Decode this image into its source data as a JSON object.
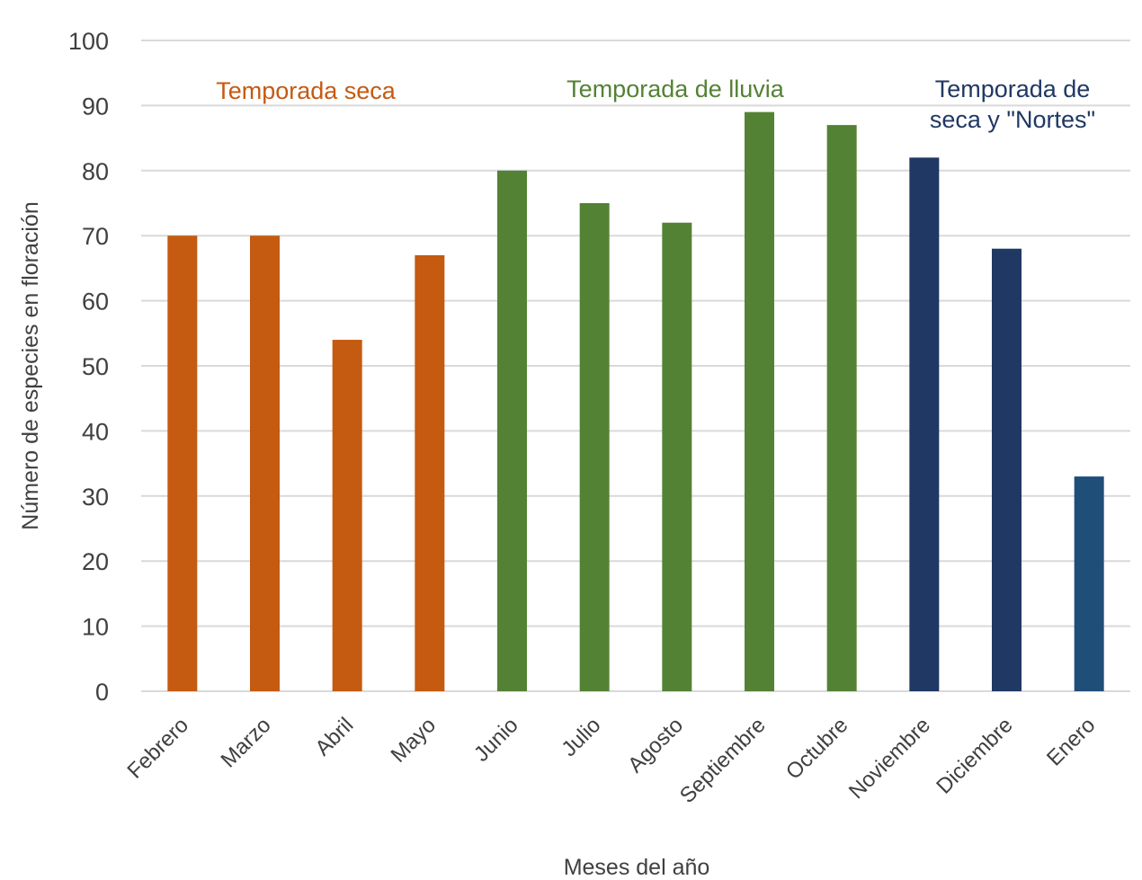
{
  "chart_data": {
    "type": "bar",
    "title": "",
    "xlabel": "Meses del año",
    "ylabel": "Número de especies en floración",
    "ylim": [
      0,
      100
    ],
    "yticks": [
      0,
      10,
      20,
      30,
      40,
      50,
      60,
      70,
      80,
      90,
      100
    ],
    "grid": true,
    "categories": [
      "Febrero",
      "Marzo",
      "Abril",
      "Mayo",
      "Junio",
      "Julio",
      "Agosto",
      "Septiembre",
      "Octubre",
      "Noviembre",
      "Diciembre",
      "Enero"
    ],
    "values": [
      70,
      70,
      54,
      67,
      80,
      75,
      72,
      89,
      87,
      82,
      68,
      33
    ],
    "bar_colors": [
      "#c55a11",
      "#c55a11",
      "#c55a11",
      "#c55a11",
      "#548235",
      "#548235",
      "#548235",
      "#548235",
      "#548235",
      "#203864",
      "#203864",
      "#1f4e79"
    ],
    "annotations": [
      {
        "lines": [
          "Temporada  seca"
        ],
        "color": "#c55a11",
        "over": "Febrero-Mayo"
      },
      {
        "lines": [
          "Temporada de lluvia"
        ],
        "color": "#548235",
        "over": "Junio-Octubre"
      },
      {
        "lines": [
          "Temporada de",
          "seca y \"Nortes\""
        ],
        "color": "#203864",
        "over": "Noviembre-Enero"
      }
    ]
  }
}
